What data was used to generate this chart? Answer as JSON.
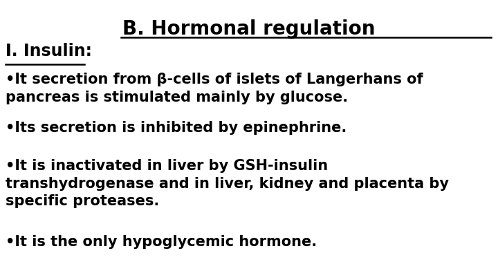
{
  "background_color": "#ffffff",
  "text_color": "#000000",
  "title": "B. Hormonal regulation",
  "subtitle": "I. Insulin:",
  "bullets": [
    "•It secretion from β-cells of islets of Langerhans of\npancreas is stimulated mainly by glucose.",
    "•Its secretion is inhibited by epinephrine.",
    "•It is inactivated in liver by GSH-insulin\ntranshydrogenase and in liver, kidney and placenta by\nspecific proteases.",
    "•It is the only hypoglycemic hormone."
  ],
  "title_fontsize": 20,
  "subtitle_fontsize": 17,
  "bullet_fontsize": 15,
  "font_family": "DejaVu Sans"
}
